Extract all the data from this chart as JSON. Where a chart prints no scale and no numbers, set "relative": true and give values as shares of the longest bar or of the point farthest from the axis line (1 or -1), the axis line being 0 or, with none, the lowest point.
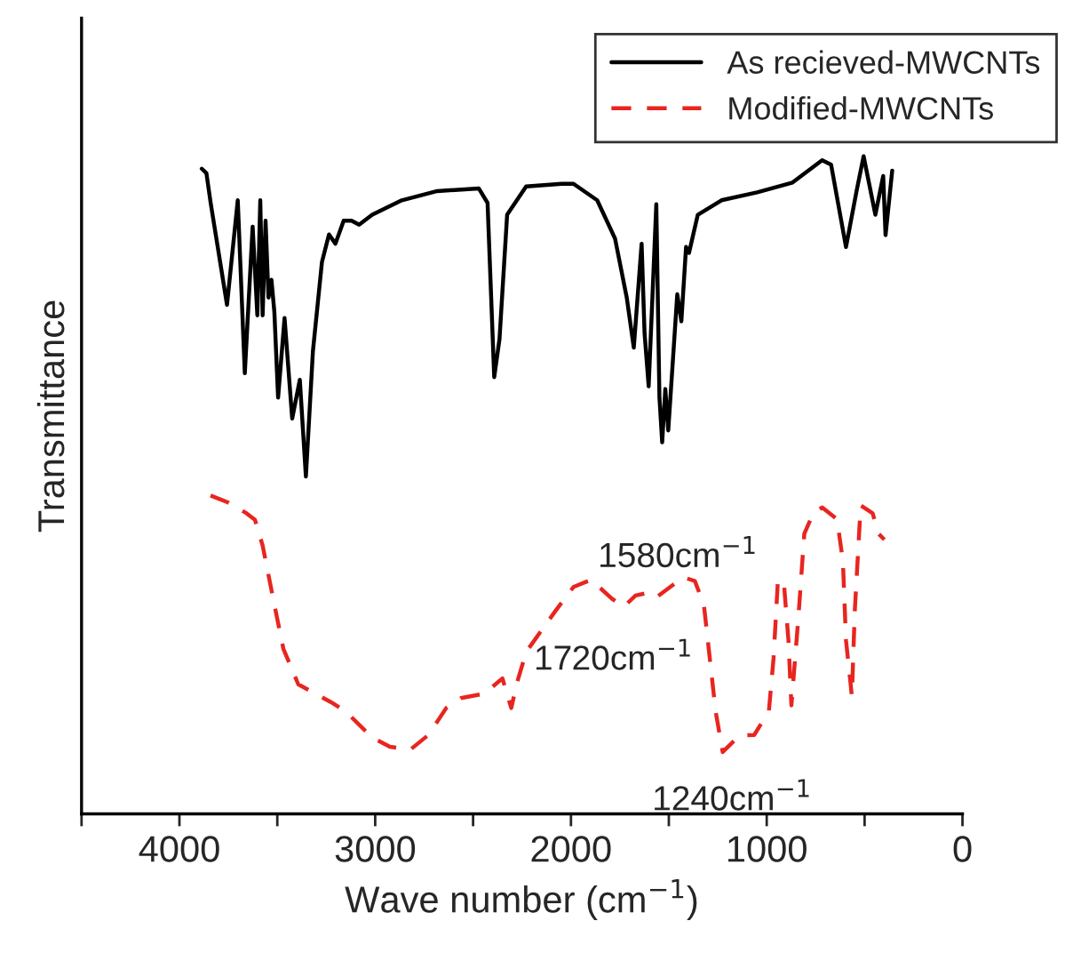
{
  "chart_data": {
    "type": "line",
    "relative": true,
    "xlabel": "Wave number (cm$^{−1}$)",
    "ylabel": "Transmittance",
    "xlim": [
      4500,
      0
    ],
    "xticks": [
      {
        "value": 4500,
        "label": null
      },
      4000,
      {
        "value": 3500,
        "label": null
      },
      3000,
      {
        "value": 2500,
        "label": null
      },
      2000,
      {
        "value": 1500,
        "label": null
      },
      1000,
      {
        "value": 500,
        "label": null
      },
      0
    ],
    "tick_labels": "x",
    "grid": false,
    "legend": "top right",
    "marker": "none",
    "annotations": [
      {
        "text": "1580cm$^{−1}$",
        "x": 1580,
        "y": 0.336
      },
      {
        "text": "1720cm$^{−1}$",
        "x": 1720,
        "y": 0.315
      },
      {
        "text": "1240cm$^{−1}$",
        "x": 1240,
        "y": 0.094
      }
    ],
    "series": [
      {
        "name": "As recieved-MWCNTs",
        "color": "#000000",
        "line_style": "solid",
        "x": [
          3886,
          3862,
          3841,
          3757,
          3702,
          3666,
          3626,
          3602,
          3587,
          3575,
          3560,
          3545,
          3530,
          3515,
          3496,
          3463,
          3424,
          3385,
          3354,
          3318,
          3272,
          3236,
          3203,
          3161,
          3121,
          3082,
          3015,
          2864,
          2683,
          2471,
          2426,
          2392,
          2365,
          2326,
          2229,
          2047,
          1987,
          1866,
          1775,
          1715,
          1679,
          1639,
          1624,
          1603,
          1564,
          1548,
          1534,
          1518,
          1503,
          1457,
          1436,
          1412,
          1397,
          1352,
          1231,
          1049,
          868,
          717,
          671,
          595,
          541,
          505,
          445,
          405,
          393,
          359
        ],
        "values": [
          0.981,
          0.974,
          0.93,
          0.774,
          0.933,
          0.67,
          0.893,
          0.758,
          0.933,
          0.758,
          0.902,
          0.785,
          0.812,
          0.763,
          0.633,
          0.754,
          0.601,
          0.66,
          0.513,
          0.704,
          0.839,
          0.881,
          0.867,
          0.902,
          0.902,
          0.896,
          0.911,
          0.933,
          0.947,
          0.951,
          0.929,
          0.664,
          0.722,
          0.911,
          0.954,
          0.958,
          0.958,
          0.933,
          0.875,
          0.785,
          0.709,
          0.867,
          0.731,
          0.65,
          0.927,
          0.633,
          0.565,
          0.646,
          0.583,
          0.79,
          0.749,
          0.862,
          0.853,
          0.911,
          0.933,
          0.945,
          0.96,
          0.994,
          0.987,
          0.862,
          0.947,
          1.0,
          0.911,
          0.97,
          0.88,
          0.978
        ]
      },
      {
        "name": "Modified-MWCNTs",
        "color": "#e8251f",
        "line_style": "dashed",
        "x": [
          3841,
          3748,
          3657,
          3614,
          3575,
          3515,
          3469,
          3393,
          3227,
          3152,
          3015,
          2925,
          2819,
          2728,
          2637,
          2562,
          2441,
          2350,
          2305,
          2274,
          2229,
          2153,
          2078,
          1987,
          1897,
          1790,
          1730,
          1670,
          1609,
          1564,
          1427,
          1367,
          1321,
          1291,
          1261,
          1225,
          1140,
          1064,
          989,
          965,
          943,
          913,
          889,
          874,
          838,
          808,
          762,
          717,
          641,
          611,
          595,
          565,
          550,
          520,
          459,
          429,
          399
        ],
        "values": [
          0.484,
          0.473,
          0.457,
          0.447,
          0.408,
          0.318,
          0.251,
          0.197,
          0.17,
          0.156,
          0.116,
          0.102,
          0.098,
          0.12,
          0.161,
          0.176,
          0.183,
          0.206,
          0.161,
          0.201,
          0.246,
          0.278,
          0.309,
          0.345,
          0.356,
          0.327,
          0.315,
          0.332,
          0.336,
          0.329,
          0.36,
          0.354,
          0.318,
          0.237,
          0.156,
          0.094,
          0.119,
          0.12,
          0.156,
          0.237,
          0.354,
          0.354,
          0.264,
          0.165,
          0.3,
          0.426,
          0.457,
          0.466,
          0.448,
          0.385,
          0.264,
          0.179,
          0.309,
          0.469,
          0.457,
          0.426,
          0.417
        ]
      }
    ]
  }
}
